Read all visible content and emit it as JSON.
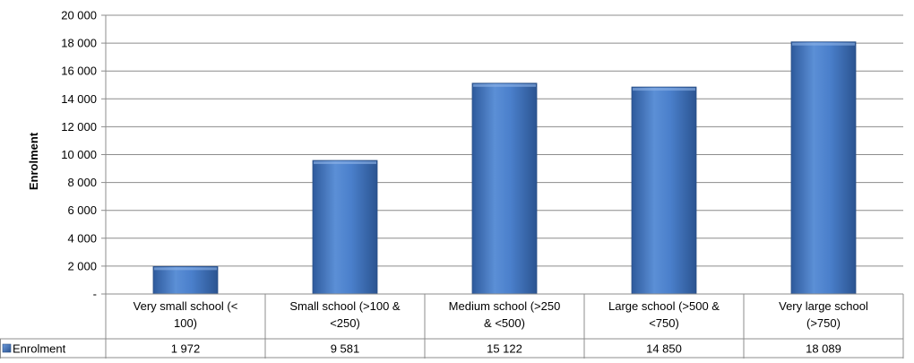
{
  "chart_data": {
    "type": "bar",
    "title": "",
    "ylabel": "Enrolment",
    "xlabel": "",
    "ylim": [
      0,
      20000
    ],
    "grid": true,
    "y_ticks": [
      {
        "value": 0,
        "label": "-"
      },
      {
        "value": 2000,
        "label": "2 000"
      },
      {
        "value": 4000,
        "label": "4 000"
      },
      {
        "value": 6000,
        "label": "6 000"
      },
      {
        "value": 8000,
        "label": "8 000"
      },
      {
        "value": 10000,
        "label": "10 000"
      },
      {
        "value": 12000,
        "label": "12 000"
      },
      {
        "value": 14000,
        "label": "14 000"
      },
      {
        "value": 16000,
        "label": "16 000"
      },
      {
        "value": 18000,
        "label": "18 000"
      },
      {
        "value": 20000,
        "label": "20 000"
      }
    ],
    "categories": [
      [
        "Very small school (<",
        "100)"
      ],
      [
        "Small school (>100 &",
        "<250)"
      ],
      [
        "Medium school (>250",
        "& <500)"
      ],
      [
        "Large school (>500 &",
        "<750)"
      ],
      [
        "Very large school",
        "(>750)"
      ]
    ],
    "series": [
      {
        "name": "Enrolment",
        "values": [
          1972,
          9581,
          15122,
          14850,
          18089
        ],
        "value_labels": [
          "1 972",
          "9 581",
          "15 122",
          "14 850",
          "18 089"
        ],
        "color": "#4F81BD"
      }
    ],
    "legend": "data-table"
  }
}
